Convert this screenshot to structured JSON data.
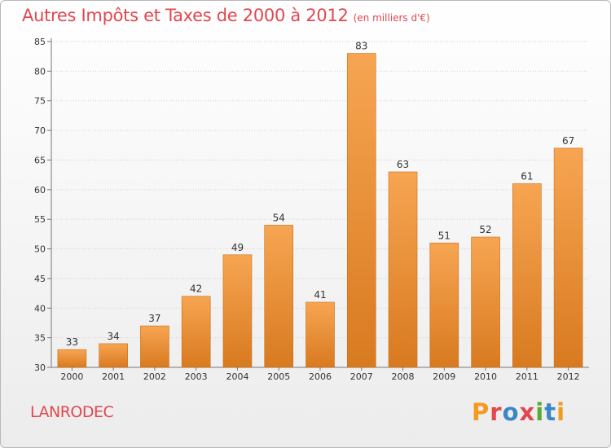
{
  "header": {
    "title": "Autres Impôts et Taxes de 2000 à 2012",
    "unit": "(en milliers d'€)"
  },
  "footer": {
    "commune": "LANRODEC",
    "brand": "Proxiti"
  },
  "colors": {
    "title": "#e2474e",
    "bar_top": "#f7a552",
    "bar_bottom": "#d87a20",
    "brand_letters": [
      "#f39a1f",
      "#e2474e",
      "#3a87c8",
      "#e2474e",
      "#5aaa2f",
      "#3a87c8",
      "#f39a1f"
    ]
  },
  "chart_data": {
    "type": "bar",
    "title": "Autres Impôts et Taxes de 2000 à 2012",
    "subtitle": "(en milliers d'€)",
    "categories": [
      "2000",
      "2001",
      "2002",
      "2003",
      "2004",
      "2005",
      "2006",
      "2007",
      "2008",
      "2009",
      "2010",
      "2011",
      "2012"
    ],
    "values": [
      33,
      34,
      37,
      42,
      49,
      54,
      41,
      83,
      63,
      51,
      52,
      61,
      67
    ],
    "ylim": [
      30,
      85
    ],
    "yticks": [
      30,
      35,
      40,
      45,
      50,
      55,
      60,
      65,
      70,
      75,
      80,
      85
    ],
    "grid": true,
    "legend": "none"
  }
}
